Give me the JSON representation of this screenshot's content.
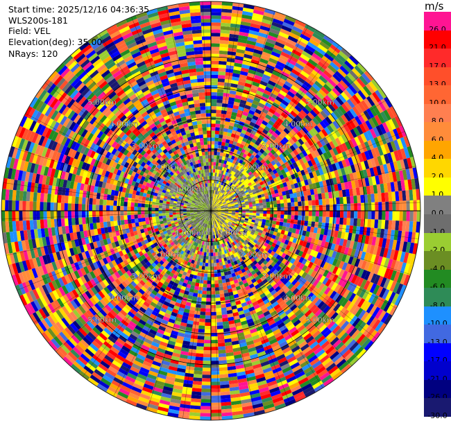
{
  "header": {
    "start_time": "Start time: 2025/12/16 04:36:35",
    "instrument": "WLS200s-181",
    "field": "Field: VEL",
    "elevation": "Elevation(deg): 35.00",
    "nrays": "NRays: 120"
  },
  "colorbar": {
    "unit": "m/s",
    "labels": [
      "26.0",
      "21.0",
      "17.0",
      "13.0",
      "10.0",
      "8.0",
      "6.0",
      "4.0",
      "2.0",
      "1.0",
      "0.0",
      "-1.0",
      "-2.0",
      "-4.0",
      "-6.0",
      "-8.0",
      "-10.0",
      "-13.0",
      "-17.0",
      "-21.0",
      "-26.0",
      "-30.0"
    ],
    "colors": [
      "#ff1493",
      "#ff0000",
      "#ff2a2a",
      "#ff4f2a",
      "#ff6633",
      "#ff7f50",
      "#ff8c3a",
      "#ffa500",
      "#ffd700",
      "#ffff00",
      "#808080",
      "#6e6e6e",
      "#9acd32",
      "#6b8e23",
      "#228b22",
      "#2e8b57",
      "#1e90ff",
      "#4169e1",
      "#0000ff",
      "#0000cd",
      "#000080",
      "#191970"
    ]
  },
  "chart_data": {
    "type": "heatmap",
    "projection": "polar PPI",
    "field": "VEL",
    "unit": "m/s",
    "elevation_deg": 35.0,
    "nrays": 120,
    "range_ring_labels": [
      "1.00km",
      "2.00km",
      "3.00km",
      "4.00km",
      "5.00km"
    ],
    "range_rings_km": [
      1,
      2,
      3,
      4,
      5
    ],
    "color_scale": [
      26.0,
      21.0,
      17.0,
      13.0,
      10.0,
      8.0,
      6.0,
      4.0,
      2.0,
      1.0,
      0.0,
      -1.0,
      -2.0,
      -4.0,
      -6.0,
      -8.0,
      -10.0,
      -13.0,
      -17.0,
      -21.0,
      -26.0,
      -30.0
    ],
    "gates_per_ray": 60,
    "near_field_pattern": "grey and yellow-green near center (small |v|); yellow on the east side; green on the west side",
    "far_field_pattern": "mixed noise across the full color scale"
  }
}
